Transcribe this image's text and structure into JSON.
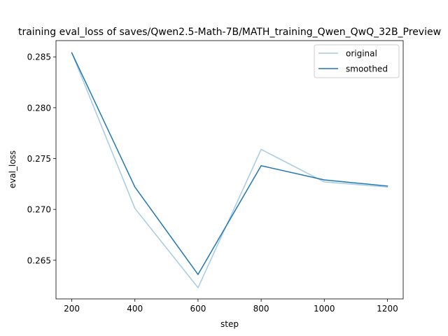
{
  "chart_data": {
    "type": "line",
    "title": "training eval_loss of saves/Qwen2.5-Math-7B/MATH_training_Qwen_QwQ_32B_Preview",
    "xlabel": "step",
    "ylabel": "eval_loss",
    "x": [
      200,
      400,
      600,
      800,
      1000,
      1200
    ],
    "xlim": [
      150,
      1250
    ],
    "ylim": [
      0.2612,
      0.2866
    ],
    "xticks": [
      200,
      400,
      600,
      800,
      1000,
      1200
    ],
    "yticks": [
      0.265,
      0.27,
      0.275,
      0.28,
      0.285
    ],
    "grid": false,
    "legend": "top-right",
    "series": [
      {
        "name": "original",
        "color": "#a6cbe3",
        "values": [
          0.2854,
          0.2701,
          0.2623,
          0.2759,
          0.2727,
          0.2722
        ]
      },
      {
        "name": "smoothed",
        "color": "#1f77b4",
        "values": [
          0.2854,
          0.2722,
          0.2636,
          0.2743,
          0.2729,
          0.2723
        ]
      }
    ]
  }
}
